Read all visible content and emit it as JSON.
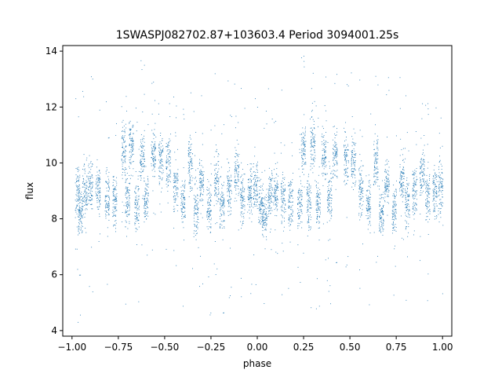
{
  "chart_data": {
    "type": "scatter",
    "title": "1SWASPJ082702.87+103603.4 Period 3094001.25s",
    "xlabel": "phase",
    "ylabel": "flux",
    "xlim": [
      -1.05,
      1.05
    ],
    "ylim": [
      3.8,
      14.2
    ],
    "xticks": [
      -1.0,
      -0.75,
      -0.5,
      -0.25,
      0.0,
      0.25,
      0.5,
      0.75,
      1.0
    ],
    "xtick_labels": [
      "−1.00",
      "−0.75",
      "−0.50",
      "−0.25",
      "0.00",
      "0.25",
      "0.50",
      "0.75",
      "1.00"
    ],
    "yticks": [
      4,
      6,
      8,
      10,
      12,
      14
    ],
    "ytick_labels": [
      "4",
      "6",
      "8",
      "10",
      "12",
      "14"
    ],
    "grid": false,
    "marker_color": "#1f77b4",
    "series": [
      {
        "description_free": true,
        "clusters": [
          {
            "x": -0.97,
            "y": 8.9
          },
          {
            "x": -0.955,
            "y": 8.2
          },
          {
            "x": -0.93,
            "y": 9.0
          },
          {
            "x": -0.9,
            "y": 9.2
          },
          {
            "x": -0.86,
            "y": 9.0
          },
          {
            "x": -0.81,
            "y": 8.7
          },
          {
            "x": -0.77,
            "y": 8.6
          },
          {
            "x": -0.72,
            "y": 10.5
          },
          {
            "x": -0.7,
            "y": 8.6
          },
          {
            "x": -0.68,
            "y": 10.7
          },
          {
            "x": -0.65,
            "y": 8.5
          },
          {
            "x": -0.62,
            "y": 10.2
          },
          {
            "x": -0.6,
            "y": 8.8
          },
          {
            "x": -0.56,
            "y": 10.3
          },
          {
            "x": -0.52,
            "y": 10.1
          },
          {
            "x": -0.48,
            "y": 10.0
          },
          {
            "x": -0.44,
            "y": 9.1
          },
          {
            "x": -0.4,
            "y": 8.6
          },
          {
            "x": -0.36,
            "y": 10.0
          },
          {
            "x": -0.33,
            "y": 8.3
          },
          {
            "x": -0.3,
            "y": 9.3
          },
          {
            "x": -0.26,
            "y": 8.4
          },
          {
            "x": -0.22,
            "y": 9.4
          },
          {
            "x": -0.19,
            "y": 8.5
          },
          {
            "x": -0.15,
            "y": 9.0
          },
          {
            "x": -0.11,
            "y": 9.6
          },
          {
            "x": -0.08,
            "y": 8.8
          },
          {
            "x": -0.04,
            "y": 9.0
          },
          {
            "x": -0.01,
            "y": 9.2
          },
          {
            "x": 0.02,
            "y": 8.6
          },
          {
            "x": 0.04,
            "y": 8.1
          },
          {
            "x": 0.07,
            "y": 9.0
          },
          {
            "x": 0.1,
            "y": 8.9
          },
          {
            "x": 0.14,
            "y": 8.7
          },
          {
            "x": 0.18,
            "y": 8.6
          },
          {
            "x": 0.23,
            "y": 8.5
          },
          {
            "x": 0.25,
            "y": 10.5
          },
          {
            "x": 0.28,
            "y": 8.6
          },
          {
            "x": 0.3,
            "y": 10.7
          },
          {
            "x": 0.33,
            "y": 8.5
          },
          {
            "x": 0.36,
            "y": 10.3
          },
          {
            "x": 0.39,
            "y": 8.8
          },
          {
            "x": 0.42,
            "y": 10.3
          },
          {
            "x": 0.48,
            "y": 10.1
          },
          {
            "x": 0.52,
            "y": 10.0
          },
          {
            "x": 0.56,
            "y": 9.1
          },
          {
            "x": 0.6,
            "y": 8.6
          },
          {
            "x": 0.64,
            "y": 10.0
          },
          {
            "x": 0.67,
            "y": 8.3
          },
          {
            "x": 0.7,
            "y": 9.3
          },
          {
            "x": 0.74,
            "y": 8.4
          },
          {
            "x": 0.78,
            "y": 9.4
          },
          {
            "x": 0.81,
            "y": 8.5
          },
          {
            "x": 0.85,
            "y": 9.0
          },
          {
            "x": 0.89,
            "y": 9.6
          },
          {
            "x": 0.92,
            "y": 8.8
          },
          {
            "x": 0.96,
            "y": 9.0
          },
          {
            "x": 0.99,
            "y": 9.1
          }
        ]
      }
    ]
  }
}
